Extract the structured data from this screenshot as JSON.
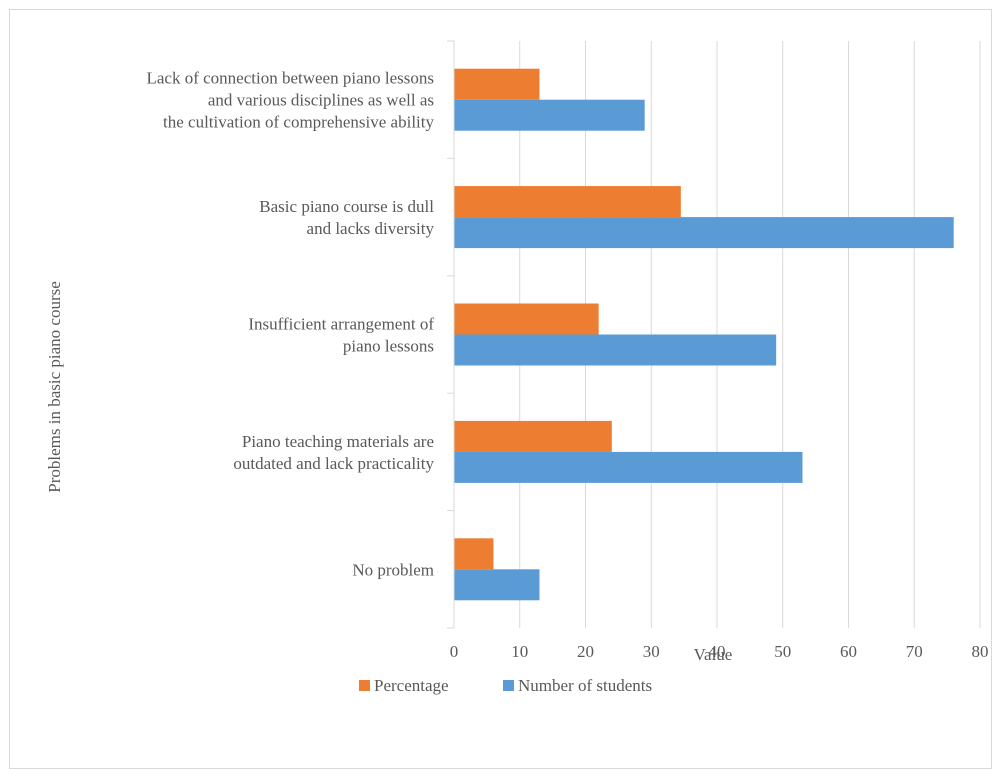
{
  "chart_data": {
    "type": "bar",
    "orientation": "horizontal",
    "title": "",
    "xlabel": "Value",
    "ylabel": "Problems in basic piano course",
    "xlim": [
      0,
      80
    ],
    "x_ticks": [
      0,
      10,
      20,
      30,
      40,
      50,
      60,
      70,
      80
    ],
    "grid": true,
    "legend_position": "bottom",
    "categories": [
      [
        "Lack of connection between piano lessons",
        "and various disciplines as well as",
        "the cultivation of comprehensive ability"
      ],
      [
        "Basic piano course is dull",
        "and lacks diversity"
      ],
      [
        "Insufficient arrangement of",
        "piano lessons"
      ],
      [
        "Piano teaching materials are",
        "outdated and lack practicality"
      ],
      [
        "No problem"
      ]
    ],
    "series": [
      {
        "name": "Percentage",
        "color": "#ed7d31",
        "values": [
          13,
          34.5,
          22,
          24,
          6
        ]
      },
      {
        "name": "Number of students",
        "color": "#5b9bd5",
        "values": [
          29,
          76,
          49,
          53,
          13
        ]
      }
    ]
  }
}
